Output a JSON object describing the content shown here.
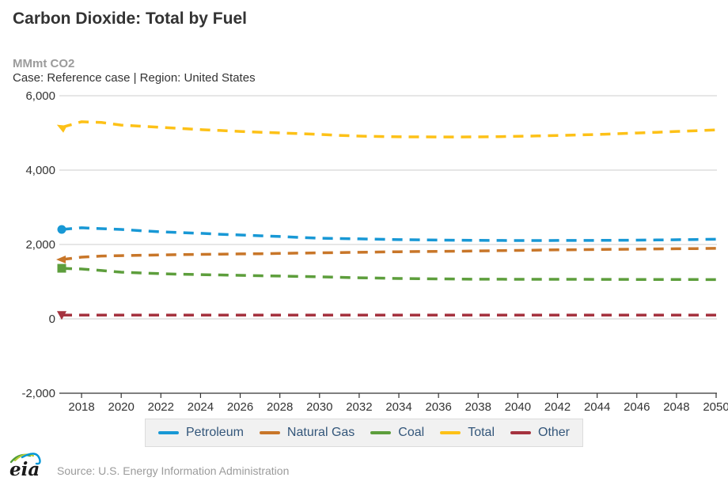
{
  "header": {
    "title": "Carbon Dioxide: Total by Fuel",
    "unit_label": "MMmt CO2",
    "case_line": "Case: Reference case | Region: United States"
  },
  "footer": {
    "logo_text": "eia",
    "source": "Source: U.S. Energy Information Administration"
  },
  "colors": {
    "title_text": "#333333",
    "muted_text": "#9b9b9b",
    "legend_text": "#33567a",
    "grid": "#cccccc",
    "axis": "#333333",
    "legend_bg": "#f1f1f1"
  },
  "chart_data": {
    "type": "line",
    "title": "Carbon Dioxide: Total by Fuel",
    "subtitle": "Case: Reference case | Region: United States",
    "ylabel": "MMmt CO2",
    "ylim": [
      -2000,
      6000
    ],
    "ytick_step": 2000,
    "yticks": [
      -2000,
      0,
      2000,
      4000,
      6000
    ],
    "xlim": [
      2017,
      2050
    ],
    "xticks": [
      2018,
      2020,
      2022,
      2024,
      2026,
      2028,
      2030,
      2032,
      2034,
      2036,
      2038,
      2040,
      2042,
      2044,
      2046,
      2048,
      2050
    ],
    "grid": "horizontal",
    "legend_position": "bottom",
    "line_style": "dashed",
    "x": [
      2017,
      2018,
      2019,
      2020,
      2021,
      2022,
      2023,
      2024,
      2025,
      2026,
      2027,
      2028,
      2029,
      2030,
      2031,
      2032,
      2033,
      2034,
      2035,
      2036,
      2037,
      2038,
      2039,
      2040,
      2041,
      2042,
      2043,
      2044,
      2045,
      2046,
      2047,
      2048,
      2049,
      2050
    ],
    "series": [
      {
        "name": "Petroleum",
        "key": "petroleum",
        "color": "#1898d5",
        "marker": "circle",
        "values": [
          2405,
          2450,
          2425,
          2405,
          2370,
          2340,
          2320,
          2300,
          2275,
          2255,
          2235,
          2215,
          2190,
          2170,
          2160,
          2150,
          2140,
          2130,
          2125,
          2120,
          2115,
          2110,
          2108,
          2107,
          2107,
          2108,
          2108,
          2110,
          2113,
          2117,
          2122,
          2127,
          2133,
          2140
        ]
      },
      {
        "name": "Natural Gas",
        "key": "natural-gas",
        "color": "#c87629",
        "marker": "arrow-left",
        "values": [
          1595,
          1660,
          1690,
          1700,
          1710,
          1720,
          1728,
          1735,
          1740,
          1746,
          1752,
          1760,
          1768,
          1775,
          1783,
          1790,
          1798,
          1805,
          1810,
          1815,
          1820,
          1826,
          1833,
          1840,
          1848,
          1855,
          1860,
          1865,
          1870,
          1875,
          1880,
          1885,
          1890,
          1895
        ]
      },
      {
        "name": "Coal",
        "key": "coal",
        "color": "#5d9e3c",
        "marker": "square",
        "values": [
          1360,
          1340,
          1300,
          1255,
          1235,
          1215,
          1200,
          1190,
          1180,
          1170,
          1160,
          1150,
          1140,
          1130,
          1118,
          1105,
          1095,
          1085,
          1080,
          1075,
          1070,
          1065,
          1065,
          1064,
          1064,
          1063,
          1063,
          1062,
          1061,
          1060,
          1059,
          1058,
          1057,
          1055
        ]
      },
      {
        "name": "Total",
        "key": "total",
        "color": "#fdc117",
        "marker": "arrow-down-left",
        "values": [
          5150,
          5300,
          5280,
          5210,
          5180,
          5150,
          5120,
          5090,
          5065,
          5040,
          5020,
          5000,
          4980,
          4960,
          4935,
          4915,
          4905,
          4895,
          4893,
          4892,
          4892,
          4893,
          4900,
          4910,
          4920,
          4932,
          4945,
          4958,
          4978,
          4998,
          5018,
          5040,
          5060,
          5080
        ]
      },
      {
        "name": "Other",
        "key": "other",
        "color": "#a5333f",
        "marker": "triangle-down",
        "values": [
          100,
          100,
          100,
          100,
          100,
          100,
          100,
          100,
          100,
          100,
          100,
          100,
          100,
          100,
          100,
          100,
          100,
          100,
          100,
          100,
          100,
          100,
          100,
          100,
          100,
          100,
          100,
          100,
          100,
          100,
          100,
          100,
          100,
          100
        ]
      }
    ]
  }
}
